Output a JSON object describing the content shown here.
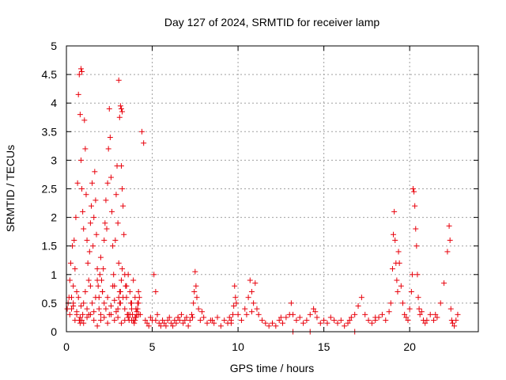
{
  "chart_data": {
    "type": "scatter",
    "title": "Day 127 of 2024, SRMTID for receiver lamp",
    "xlabel": "GPS time / hours",
    "ylabel": "SRMTID / TECUs",
    "xlim": [
      0,
      24
    ],
    "ylim": [
      0,
      5
    ],
    "xticks": [
      0,
      5,
      10,
      15,
      20
    ],
    "yticks": [
      0,
      0.5,
      1,
      1.5,
      2,
      2.5,
      3,
      3.5,
      4,
      4.5,
      5
    ],
    "grid": true,
    "marker": "+",
    "marker_color": "#e8000b",
    "series": [
      {
        "name": "SRMTID",
        "x": [
          0.05,
          0.1,
          0.15,
          0.2,
          0.25,
          0.3,
          0.35,
          0.4,
          0.45,
          0.5,
          0.55,
          0.6,
          0.65,
          0.7,
          0.75,
          0.8,
          0.85,
          0.9,
          0.95,
          1.0,
          1.05,
          1.1,
          1.15,
          1.2,
          1.25,
          1.3,
          1.35,
          1.4,
          1.45,
          1.5,
          1.55,
          1.6,
          1.65,
          1.7,
          1.75,
          1.8,
          1.85,
          1.9,
          1.95,
          2.0,
          2.05,
          2.1,
          2.15,
          2.2,
          2.25,
          2.3,
          2.35,
          2.4,
          2.45,
          2.5,
          2.55,
          2.6,
          2.65,
          2.7,
          2.75,
          2.8,
          2.85,
          2.9,
          2.95,
          3.0,
          3.05,
          3.1,
          3.15,
          3.2,
          3.25,
          3.3,
          3.35,
          3.4,
          3.45,
          3.5,
          3.55,
          3.6,
          3.65,
          3.7,
          3.75,
          3.8,
          3.85,
          3.9,
          3.95,
          4.0,
          4.05,
          4.1,
          4.15,
          4.2,
          4.25,
          4.3,
          0.2,
          0.3,
          0.4,
          0.5,
          0.6,
          0.7,
          0.8,
          0.85,
          0.9,
          0.95,
          1.0,
          1.1,
          1.2,
          1.3,
          1.4,
          1.5,
          1.6,
          1.7,
          1.8,
          1.9,
          2.0,
          2.1,
          2.2,
          2.3,
          2.4,
          2.5,
          2.6,
          2.7,
          2.8,
          2.9,
          3.0,
          3.05,
          3.1,
          3.15,
          3.2,
          3.25,
          3.3,
          3.4,
          3.5,
          3.6,
          3.7,
          3.8,
          3.9,
          4.0,
          4.05,
          4.1,
          4.15,
          4.2,
          0.4,
          0.6,
          0.8,
          1.0,
          1.2,
          1.4,
          1.6,
          1.8,
          2.0,
          2.2,
          2.4,
          2.6,
          2.8,
          3.0,
          3.2,
          3.4,
          3.6,
          3.8,
          4.0,
          4.2,
          0.75,
          0.8,
          0.85,
          0.9,
          3.05,
          3.1,
          3.15,
          3.2,
          3.25,
          4.4,
          4.5,
          4.6,
          4.7,
          4.8,
          4.9,
          5.0,
          5.1,
          5.2,
          5.3,
          5.4,
          5.5,
          5.6,
          5.7,
          5.8,
          5.9,
          6.0,
          6.1,
          6.2,
          6.3,
          6.4,
          6.5,
          6.6,
          6.7,
          6.8,
          6.9,
          7.0,
          7.1,
          7.2,
          7.3,
          7.35,
          7.4,
          7.45,
          7.5,
          7.55,
          7.6,
          7.7,
          7.8,
          7.9,
          8.0,
          8.2,
          8.4,
          8.6,
          8.8,
          9.0,
          9.2,
          9.4,
          9.5,
          9.6,
          9.7,
          9.75,
          9.8,
          9.85,
          9.9,
          10.0,
          10.2,
          10.4,
          10.5,
          10.6,
          10.7,
          10.8,
          10.9,
          11.0,
          11.1,
          11.2,
          11.4,
          11.6,
          11.8,
          12.0,
          12.2,
          12.4,
          12.6,
          12.8,
          13.0,
          13.1,
          13.2,
          13.4,
          13.6,
          13.8,
          14.0,
          14.2,
          14.4,
          14.6,
          14.8,
          15.0,
          15.2,
          15.4,
          15.6,
          15.8,
          16.0,
          16.2,
          16.4,
          16.6,
          16.8,
          17.0,
          17.2,
          17.4,
          17.6,
          17.8,
          18.0,
          18.2,
          18.4,
          18.6,
          18.8,
          18.9,
          19.0,
          19.05,
          19.1,
          19.15,
          19.2,
          19.25,
          19.3,
          19.35,
          19.4,
          19.5,
          19.6,
          19.7,
          19.8,
          19.9,
          20.0,
          20.1,
          20.15,
          20.2,
          20.25,
          20.3,
          20.35,
          20.4,
          20.45,
          20.5,
          20.55,
          20.6,
          20.7,
          20.8,
          20.9,
          21.0,
          21.2,
          21.4,
          21.6,
          21.8,
          22.0,
          22.2,
          22.3,
          22.35,
          22.4,
          22.45,
          22.5,
          22.6,
          22.7,
          22.8,
          5.2,
          6.5,
          8.5,
          9.6,
          10.8,
          12.5,
          14.5,
          16.5,
          18.0,
          21.5,
          13.2,
          14.2,
          16.8
        ],
        "y": [
          0.4,
          0.5,
          0.6,
          0.9,
          1.2,
          0.6,
          1.5,
          0.8,
          1.6,
          1.1,
          2.0,
          0.7,
          2.6,
          4.15,
          4.5,
          3.8,
          3.0,
          2.5,
          2.1,
          1.8,
          3.7,
          3.2,
          2.4,
          1.6,
          1.2,
          0.9,
          1.4,
          1.9,
          2.2,
          2.6,
          1.5,
          2.0,
          2.8,
          2.3,
          1.7,
          1.1,
          0.8,
          0.6,
          1.0,
          1.3,
          0.9,
          0.7,
          1.1,
          1.6,
          1.9,
          2.3,
          1.8,
          2.6,
          3.2,
          3.9,
          3.4,
          2.7,
          2.1,
          1.5,
          1.0,
          0.8,
          1.6,
          2.4,
          2.9,
          1.9,
          1.2,
          0.7,
          0.5,
          2.9,
          2.5,
          2.2,
          1.7,
          1.0,
          0.8,
          0.6,
          0.3,
          0.25,
          0.2,
          0.3,
          0.5,
          0.4,
          0.3,
          0.2,
          0.15,
          0.2,
          0.25,
          0.3,
          0.4,
          0.5,
          0.6,
          0.3,
          0.3,
          0.4,
          0.5,
          0.2,
          0.35,
          0.6,
          0.25,
          0.45,
          0.2,
          0.3,
          0.5,
          0.7,
          0.4,
          0.3,
          0.8,
          0.5,
          0.35,
          0.6,
          0.9,
          0.4,
          0.3,
          0.7,
          0.5,
          0.4,
          0.6,
          0.3,
          0.45,
          0.8,
          0.55,
          0.35,
          0.4,
          0.6,
          0.5,
          0.7,
          0.9,
          1.1,
          0.6,
          0.4,
          0.8,
          1.0,
          0.7,
          0.5,
          0.9,
          0.6,
          0.4,
          0.35,
          0.5,
          0.7,
          0.45,
          0.3,
          0.2,
          0.15,
          0.25,
          0.3,
          0.2,
          0.1,
          0.2,
          0.25,
          0.15,
          0.3,
          0.2,
          0.25,
          0.15,
          0.2,
          0.3,
          0.2,
          0.25,
          0.3,
          0.2,
          0.15,
          4.6,
          4.55,
          4.4,
          3.75,
          3.95,
          3.9,
          3.85,
          3.5,
          3.3,
          0.2,
          0.15,
          0.1,
          0.25,
          0.2,
          1.0,
          0.7,
          0.3,
          0.15,
          0.1,
          0.2,
          0.15,
          0.1,
          0.2,
          0.25,
          0.15,
          0.1,
          0.2,
          0.15,
          0.25,
          0.2,
          0.3,
          0.15,
          0.2,
          0.25,
          0.1,
          0.2,
          0.3,
          0.25,
          0.5,
          0.7,
          1.05,
          0.8,
          0.6,
          0.4,
          0.2,
          0.35,
          0.25,
          0.15,
          0.2,
          0.15,
          0.25,
          0.1,
          0.2,
          0.15,
          0.25,
          0.2,
          0.3,
          0.45,
          0.8,
          0.6,
          0.5,
          0.3,
          0.2,
          0.4,
          0.3,
          0.6,
          0.9,
          0.7,
          0.5,
          0.85,
          0.4,
          0.3,
          0.2,
          0.15,
          0.1,
          0.15,
          0.1,
          0.2,
          0.15,
          0.25,
          0.3,
          0.5,
          0.3,
          0.2,
          0.25,
          0.15,
          0.2,
          0.3,
          0.4,
          0.25,
          0.15,
          0.2,
          0.15,
          0.25,
          0.2,
          0.15,
          0.2,
          0.1,
          0.15,
          0.25,
          0.3,
          0.45,
          0.6,
          0.3,
          0.2,
          0.15,
          0.2,
          0.25,
          0.3,
          0.2,
          0.35,
          0.5,
          1.1,
          1.7,
          2.1,
          1.6,
          1.2,
          0.9,
          0.7,
          1.4,
          1.2,
          0.8,
          0.5,
          0.3,
          0.25,
          0.2,
          0.4,
          0.7,
          1.0,
          2.5,
          2.45,
          2.2,
          1.8,
          1.5,
          1.0,
          0.6,
          0.4,
          0.3,
          0.35,
          0.2,
          0.15,
          0.2,
          0.3,
          0.2,
          0.25,
          0.5,
          0.85,
          1.4,
          1.85,
          1.6,
          0.4,
          0.2,
          0.15,
          0.1,
          0.2,
          0.3,
          0.2,
          0.25,
          0.2,
          0.15,
          0.35,
          0.25,
          0.35,
          0.2,
          0.25,
          0.3,
          0.0,
          0.0,
          0.0
        ]
      }
    ]
  }
}
